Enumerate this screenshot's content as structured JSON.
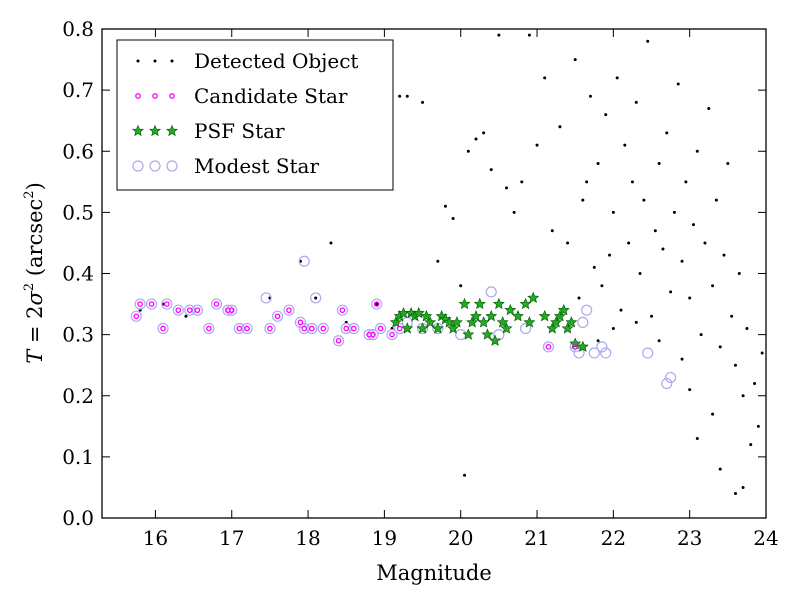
{
  "chart_data": {
    "type": "scatter",
    "title": "",
    "xlabel": "Magnitude",
    "ylabel": "T = 2σ² (arcsec²)",
    "ylabel_parts": {
      "T": "T",
      "eq": " = 2",
      "sigma": "σ",
      "sq": "2",
      "unit_open": " (arcsec",
      "unit_sq": "2",
      "unit_close": ")"
    },
    "xlim": [
      15.3,
      24
    ],
    "ylim": [
      0.0,
      0.8
    ],
    "x_ticks": [
      16,
      17,
      18,
      19,
      20,
      21,
      22,
      23,
      24
    ],
    "x_tick_labels": [
      "16",
      "17",
      "18",
      "19",
      "20",
      "21",
      "22",
      "23",
      "24"
    ],
    "y_ticks": [
      0.0,
      0.1,
      0.2,
      0.3,
      0.4,
      0.5,
      0.6,
      0.7,
      0.8
    ],
    "y_tick_labels": [
      "0.0",
      "0.1",
      "0.2",
      "0.3",
      "0.4",
      "0.5",
      "0.6",
      "0.7",
      "0.8"
    ],
    "grid": false,
    "legend_position": "top-left",
    "series": [
      {
        "name": "Detected Object",
        "marker": "dot",
        "color": "#000000",
        "points": [
          [
            15.8,
            0.34
          ],
          [
            16.1,
            0.35
          ],
          [
            16.4,
            0.33
          ],
          [
            17.5,
            0.36
          ],
          [
            17.9,
            0.42
          ],
          [
            18.1,
            0.36
          ],
          [
            18.3,
            0.45
          ],
          [
            18.5,
            0.32
          ],
          [
            18.9,
            0.35
          ],
          [
            19.1,
            0.31
          ],
          [
            19.2,
            0.69
          ],
          [
            19.3,
            0.69
          ],
          [
            19.5,
            0.68
          ],
          [
            19.7,
            0.42
          ],
          [
            19.8,
            0.51
          ],
          [
            19.9,
            0.49
          ],
          [
            20.0,
            0.38
          ],
          [
            20.05,
            0.07
          ],
          [
            20.1,
            0.6
          ],
          [
            20.2,
            0.62
          ],
          [
            20.3,
            0.63
          ],
          [
            20.4,
            0.57
          ],
          [
            20.5,
            0.79
          ],
          [
            20.6,
            0.54
          ],
          [
            20.7,
            0.5
          ],
          [
            20.8,
            0.55
          ],
          [
            20.9,
            0.79
          ],
          [
            21.0,
            0.61
          ],
          [
            21.1,
            0.72
          ],
          [
            21.2,
            0.47
          ],
          [
            21.3,
            0.64
          ],
          [
            21.4,
            0.45
          ],
          [
            21.5,
            0.75
          ],
          [
            21.55,
            0.36
          ],
          [
            21.6,
            0.52
          ],
          [
            21.65,
            0.55
          ],
          [
            21.7,
            0.69
          ],
          [
            21.75,
            0.41
          ],
          [
            21.8,
            0.58
          ],
          [
            21.85,
            0.38
          ],
          [
            21.9,
            0.66
          ],
          [
            21.95,
            0.43
          ],
          [
            22.0,
            0.5
          ],
          [
            22.05,
            0.72
          ],
          [
            22.1,
            0.34
          ],
          [
            22.15,
            0.61
          ],
          [
            22.2,
            0.45
          ],
          [
            22.25,
            0.55
          ],
          [
            22.3,
            0.68
          ],
          [
            22.35,
            0.4
          ],
          [
            22.4,
            0.52
          ],
          [
            22.45,
            0.78
          ],
          [
            22.5,
            0.33
          ],
          [
            22.55,
            0.47
          ],
          [
            22.6,
            0.58
          ],
          [
            22.65,
            0.44
          ],
          [
            22.7,
            0.63
          ],
          [
            22.75,
            0.37
          ],
          [
            22.8,
            0.5
          ],
          [
            22.85,
            0.71
          ],
          [
            22.9,
            0.42
          ],
          [
            22.95,
            0.55
          ],
          [
            23.0,
            0.36
          ],
          [
            23.05,
            0.48
          ],
          [
            23.1,
            0.6
          ],
          [
            23.15,
            0.3
          ],
          [
            23.2,
            0.45
          ],
          [
            23.25,
            0.67
          ],
          [
            23.3,
            0.38
          ],
          [
            23.35,
            0.52
          ],
          [
            23.4,
            0.28
          ],
          [
            23.45,
            0.43
          ],
          [
            23.5,
            0.58
          ],
          [
            23.55,
            0.33
          ],
          [
            23.6,
            0.25
          ],
          [
            23.65,
            0.4
          ],
          [
            23.7,
            0.2
          ],
          [
            23.75,
            0.31
          ],
          [
            23.8,
            0.12
          ],
          [
            23.85,
            0.22
          ],
          [
            23.9,
            0.15
          ],
          [
            23.95,
            0.27
          ],
          [
            23.7,
            0.05
          ],
          [
            23.6,
            0.04
          ],
          [
            23.4,
            0.08
          ],
          [
            23.1,
            0.13
          ],
          [
            23.3,
            0.17
          ],
          [
            23.0,
            0.21
          ],
          [
            22.9,
            0.26
          ],
          [
            22.6,
            0.29
          ],
          [
            22.3,
            0.32
          ],
          [
            22.0,
            0.31
          ],
          [
            21.8,
            0.29
          ]
        ]
      },
      {
        "name": "Candidate Star",
        "marker": "small-circle",
        "color": "#ff00ff",
        "points": [
          [
            15.75,
            0.33
          ],
          [
            15.8,
            0.35
          ],
          [
            15.95,
            0.35
          ],
          [
            16.1,
            0.31
          ],
          [
            16.15,
            0.35
          ],
          [
            16.3,
            0.34
          ],
          [
            16.45,
            0.34
          ],
          [
            16.55,
            0.34
          ],
          [
            16.7,
            0.31
          ],
          [
            16.8,
            0.35
          ],
          [
            16.95,
            0.34
          ],
          [
            17.0,
            0.34
          ],
          [
            17.1,
            0.31
          ],
          [
            17.2,
            0.31
          ],
          [
            17.5,
            0.31
          ],
          [
            17.6,
            0.33
          ],
          [
            17.75,
            0.34
          ],
          [
            17.9,
            0.32
          ],
          [
            17.95,
            0.31
          ],
          [
            18.05,
            0.31
          ],
          [
            18.2,
            0.31
          ],
          [
            18.4,
            0.29
          ],
          [
            18.45,
            0.34
          ],
          [
            18.5,
            0.31
          ],
          [
            18.6,
            0.31
          ],
          [
            18.8,
            0.3
          ],
          [
            18.85,
            0.3
          ],
          [
            18.9,
            0.35
          ],
          [
            18.95,
            0.31
          ],
          [
            19.1,
            0.3
          ],
          [
            19.2,
            0.31
          ],
          [
            21.15,
            0.28
          ],
          [
            21.5,
            0.28
          ]
        ]
      },
      {
        "name": "PSF Star",
        "marker": "star",
        "color": "#22aa22",
        "points": [
          [
            19.15,
            0.32
          ],
          [
            19.2,
            0.33
          ],
          [
            19.25,
            0.335
          ],
          [
            19.3,
            0.31
          ],
          [
            19.35,
            0.335
          ],
          [
            19.4,
            0.33
          ],
          [
            19.45,
            0.335
          ],
          [
            19.5,
            0.31
          ],
          [
            19.55,
            0.33
          ],
          [
            19.6,
            0.32
          ],
          [
            19.7,
            0.31
          ],
          [
            19.75,
            0.33
          ],
          [
            19.8,
            0.325
          ],
          [
            19.85,
            0.32
          ],
          [
            19.9,
            0.31
          ],
          [
            19.95,
            0.32
          ],
          [
            20.05,
            0.35
          ],
          [
            20.1,
            0.3
          ],
          [
            20.15,
            0.32
          ],
          [
            20.2,
            0.33
          ],
          [
            20.25,
            0.35
          ],
          [
            20.3,
            0.32
          ],
          [
            20.35,
            0.3
          ],
          [
            20.4,
            0.33
          ],
          [
            20.45,
            0.29
          ],
          [
            20.5,
            0.35
          ],
          [
            20.55,
            0.32
          ],
          [
            20.6,
            0.31
          ],
          [
            20.65,
            0.34
          ],
          [
            20.75,
            0.33
          ],
          [
            20.85,
            0.35
          ],
          [
            20.9,
            0.32
          ],
          [
            20.95,
            0.36
          ],
          [
            21.1,
            0.33
          ],
          [
            21.2,
            0.31
          ],
          [
            21.25,
            0.32
          ],
          [
            21.3,
            0.33
          ],
          [
            21.35,
            0.34
          ],
          [
            21.4,
            0.31
          ],
          [
            21.45,
            0.32
          ],
          [
            21.5,
            0.285
          ],
          [
            21.6,
            0.28
          ]
        ]
      },
      {
        "name": "Modest Star",
        "marker": "open-circle",
        "color": "#aaaaee",
        "points": [
          [
            15.75,
            0.33
          ],
          [
            15.8,
            0.35
          ],
          [
            15.95,
            0.35
          ],
          [
            16.1,
            0.31
          ],
          [
            16.15,
            0.35
          ],
          [
            16.3,
            0.34
          ],
          [
            16.45,
            0.34
          ],
          [
            16.55,
            0.34
          ],
          [
            16.7,
            0.31
          ],
          [
            16.8,
            0.35
          ],
          [
            16.95,
            0.34
          ],
          [
            17.0,
            0.34
          ],
          [
            17.1,
            0.31
          ],
          [
            17.2,
            0.31
          ],
          [
            17.45,
            0.36
          ],
          [
            17.5,
            0.31
          ],
          [
            17.6,
            0.33
          ],
          [
            17.75,
            0.34
          ],
          [
            17.9,
            0.32
          ],
          [
            17.95,
            0.42
          ],
          [
            17.95,
            0.31
          ],
          [
            18.05,
            0.31
          ],
          [
            18.1,
            0.36
          ],
          [
            18.2,
            0.31
          ],
          [
            18.4,
            0.29
          ],
          [
            18.45,
            0.34
          ],
          [
            18.5,
            0.31
          ],
          [
            18.6,
            0.31
          ],
          [
            18.8,
            0.3
          ],
          [
            18.85,
            0.3
          ],
          [
            18.9,
            0.35
          ],
          [
            18.95,
            0.31
          ],
          [
            19.1,
            0.3
          ],
          [
            19.2,
            0.31
          ],
          [
            19.3,
            0.32
          ],
          [
            19.5,
            0.31
          ],
          [
            19.7,
            0.31
          ],
          [
            20.0,
            0.3
          ],
          [
            20.4,
            0.37
          ],
          [
            20.5,
            0.3
          ],
          [
            20.85,
            0.31
          ],
          [
            21.15,
            0.28
          ],
          [
            21.5,
            0.28
          ],
          [
            21.55,
            0.27
          ],
          [
            21.6,
            0.32
          ],
          [
            21.65,
            0.34
          ],
          [
            21.75,
            0.27
          ],
          [
            21.85,
            0.28
          ],
          [
            21.9,
            0.27
          ],
          [
            22.45,
            0.27
          ],
          [
            22.7,
            0.22
          ],
          [
            22.75,
            0.23
          ]
        ]
      }
    ]
  }
}
